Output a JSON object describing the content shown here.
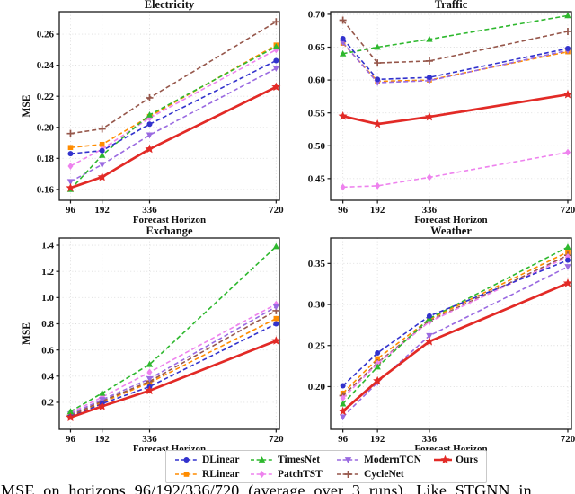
{
  "figure": {
    "caption_fragment": "MSE on horizons 96/192/336/720 (average over 3 runs). Like STGNN in"
  },
  "series_meta": [
    {
      "name": "DLinear",
      "color": "#3232cd",
      "marker": "circle",
      "line": "dashed"
    },
    {
      "name": "RLinear",
      "color": "#ff8c00",
      "marker": "square",
      "line": "dashed"
    },
    {
      "name": "TimesNet",
      "color": "#2eb82e",
      "marker": "triangle-up",
      "line": "dashed"
    },
    {
      "name": "PatchTST",
      "color": "#ee82ee",
      "marker": "diamond",
      "line": "dashed"
    },
    {
      "name": "ModernTCN",
      "color": "#9a6ae1",
      "marker": "triangle-down",
      "line": "dashed"
    },
    {
      "name": "CycleNet",
      "color": "#96574b",
      "marker": "plus",
      "line": "dashed"
    },
    {
      "name": "Ours",
      "color": "#e22a26",
      "marker": "star",
      "line": "solid"
    }
  ],
  "legend": {
    "rows": [
      [
        "DLinear",
        "TimesNet",
        "ModernTCN",
        "Ours"
      ],
      [
        "RLinear",
        "PatchTST",
        "CycleNet"
      ]
    ]
  },
  "chart_data": [
    {
      "type": "line",
      "title": "Electricity",
      "xlabel": "Forecast Horizon",
      "ylabel": "MSE",
      "x": [
        96,
        192,
        336,
        720
      ],
      "xtick_labels": [
        "96",
        "192",
        "336",
        "720"
      ],
      "ytick_labels": [
        "0.16",
        "0.18",
        "0.20",
        "0.22",
        "0.24",
        "0.26"
      ],
      "ylim": [
        0.153,
        0.2745
      ],
      "grid": true,
      "legend_position": "figure-bottom",
      "series": [
        {
          "name": "DLinear",
          "values": [
            0.183,
            0.185,
            0.202,
            0.243
          ]
        },
        {
          "name": "RLinear",
          "values": [
            0.187,
            0.189,
            0.207,
            0.253
          ]
        },
        {
          "name": "TimesNet",
          "values": [
            0.16,
            0.182,
            0.208,
            0.252
          ]
        },
        {
          "name": "PatchTST",
          "values": [
            0.175,
            0.186,
            0.206,
            0.25
          ]
        },
        {
          "name": "ModernTCN",
          "values": [
            0.165,
            0.176,
            0.195,
            0.238
          ]
        },
        {
          "name": "CycleNet",
          "values": [
            0.196,
            0.199,
            0.219,
            0.268
          ]
        },
        {
          "name": "Ours",
          "values": [
            0.161,
            0.168,
            0.186,
            0.226
          ]
        }
      ]
    },
    {
      "type": "line",
      "title": "Traffic",
      "xlabel": "Forecast Horizon",
      "ylabel": "",
      "x": [
        96,
        192,
        336,
        720
      ],
      "xtick_labels": [
        "96",
        "192",
        "336",
        "720"
      ],
      "ytick_labels": [
        "0.45",
        "0.50",
        "0.55",
        "0.60",
        "0.65",
        "0.70"
      ],
      "ylim": [
        0.417,
        0.704
      ],
      "grid": true,
      "legend_position": "figure-bottom",
      "series": [
        {
          "name": "DLinear",
          "values": [
            0.663,
            0.601,
            0.604,
            0.648
          ]
        },
        {
          "name": "RLinear",
          "values": [
            0.656,
            0.598,
            0.6,
            0.643
          ]
        },
        {
          "name": "TimesNet",
          "values": [
            0.64,
            0.65,
            0.662,
            0.698
          ]
        },
        {
          "name": "PatchTST",
          "values": [
            0.437,
            0.439,
            0.452,
            0.49
          ]
        },
        {
          "name": "ModernTCN",
          "values": [
            0.657,
            0.596,
            0.599,
            0.645
          ]
        },
        {
          "name": "CycleNet",
          "values": [
            0.691,
            0.626,
            0.629,
            0.674
          ]
        },
        {
          "name": "Ours",
          "values": [
            0.545,
            0.533,
            0.544,
            0.578
          ]
        }
      ]
    },
    {
      "type": "line",
      "title": "Exchange",
      "xlabel": "Forecast Horizon",
      "ylabel": "MSE",
      "x": [
        96,
        192,
        336,
        720
      ],
      "xtick_labels": [
        "96",
        "192",
        "336",
        "720"
      ],
      "ytick_labels": [
        "0.2",
        "0.4",
        "0.6",
        "0.8",
        "1.0",
        "1.2",
        "1.4"
      ],
      "ylim": [
        -0.006,
        1.455
      ],
      "grid": true,
      "legend_position": "figure-bottom",
      "series": [
        {
          "name": "DLinear",
          "values": [
            0.09,
            0.19,
            0.32,
            0.8
          ]
        },
        {
          "name": "RLinear",
          "values": [
            0.095,
            0.2,
            0.35,
            0.84
          ]
        },
        {
          "name": "TimesNet",
          "values": [
            0.13,
            0.27,
            0.49,
            1.39
          ]
        },
        {
          "name": "PatchTST",
          "values": [
            0.12,
            0.24,
            0.43,
            0.95
          ]
        },
        {
          "name": "ModernTCN",
          "values": [
            0.11,
            0.22,
            0.38,
            0.93
          ]
        },
        {
          "name": "CycleNet",
          "values": [
            0.1,
            0.21,
            0.36,
            0.9
          ]
        },
        {
          "name": "Ours",
          "values": [
            0.085,
            0.17,
            0.29,
            0.67
          ]
        }
      ]
    },
    {
      "type": "line",
      "title": "Weather",
      "xlabel": "Forecast Horizon",
      "ylabel": "",
      "x": [
        96,
        192,
        336,
        720
      ],
      "xtick_labels": [
        "96",
        "192",
        "336",
        "720"
      ],
      "ytick_labels": [
        "0.20",
        "0.25",
        "0.30",
        "0.35"
      ],
      "ylim": [
        0.148,
        0.381
      ],
      "grid": true,
      "legend_position": "figure-bottom",
      "series": [
        {
          "name": "DLinear",
          "values": [
            0.201,
            0.241,
            0.286,
            0.354
          ]
        },
        {
          "name": "RLinear",
          "values": [
            0.192,
            0.234,
            0.282,
            0.364
          ]
        },
        {
          "name": "TimesNet",
          "values": [
            0.179,
            0.224,
            0.283,
            0.37
          ]
        },
        {
          "name": "PatchTST",
          "values": [
            0.186,
            0.228,
            0.279,
            0.358
          ]
        },
        {
          "name": "ModernTCN",
          "values": [
            0.163,
            0.205,
            0.262,
            0.346
          ]
        },
        {
          "name": "CycleNet",
          "values": [
            0.189,
            0.229,
            0.28,
            0.36
          ]
        },
        {
          "name": "Ours",
          "values": [
            0.17,
            0.207,
            0.255,
            0.326
          ]
        }
      ]
    }
  ]
}
